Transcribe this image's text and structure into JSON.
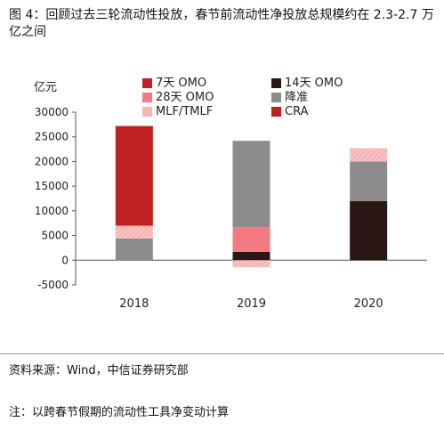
{
  "caption": "图 4：回顾过去三轮流动性投放，春节前流动性净投放总规模约在 2.3-2.7 万亿之间",
  "footer": {
    "source": "资料来源：Wind，中信证券研究部",
    "note": "注：以跨春节假期的流动性工具净变动计算"
  },
  "chart_data": {
    "type": "bar",
    "stacked": true,
    "ylabel": "亿元",
    "ylim": [
      -5000,
      30000
    ],
    "yticks": [
      -5000,
      0,
      5000,
      10000,
      15000,
      20000,
      25000,
      30000
    ],
    "categories": [
      "2018",
      "2019",
      "2020"
    ],
    "legend_position": "top",
    "series": [
      {
        "name": "7天 OMO",
        "color": "#c0201f",
        "pattern": "solid",
        "values": [
          0,
          0,
          0
        ]
      },
      {
        "name": "14天 OMO",
        "color": "#2b1616",
        "pattern": "solid",
        "values": [
          0,
          1700,
          12000
        ]
      },
      {
        "name": "28天 OMO",
        "color": "#f27a80",
        "pattern": "solid",
        "values": [
          0,
          5000,
          0
        ]
      },
      {
        "name": "降准",
        "color": "#8c8c8c",
        "pattern": "solid",
        "values": [
          4400,
          17500,
          8000
        ]
      },
      {
        "name": "MLF/TMLF",
        "color": "#f5b5b5",
        "pattern": "hatched",
        "values": [
          2600,
          -1400,
          2700
        ]
      },
      {
        "name": "CRA",
        "color": "#c0201f",
        "pattern": "solid",
        "values": [
          20200,
          0,
          0
        ]
      }
    ]
  }
}
